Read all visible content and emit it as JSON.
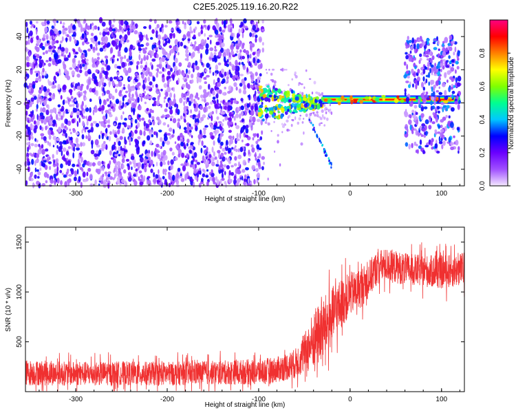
{
  "title": "C2E5.2025.119.16.20.R22",
  "chart_data": [
    {
      "type": "heatmap",
      "xlabel": "Height of straight line (km)",
      "ylabel": "Frequency (Hz)",
      "xlim": [
        -355,
        125
      ],
      "ylim": [
        -50,
        50
      ],
      "x_ticks": [
        -300,
        -200,
        -100,
        0,
        100
      ],
      "y_ticks": [
        -40,
        -20,
        0,
        20,
        40
      ],
      "colorbar": {
        "label": "Normalized spectral amplitude",
        "range": [
          0,
          1
        ],
        "ticks": [
          "0.0",
          "0.2",
          "0.4",
          "0.6",
          "0.8"
        ],
        "ticks_values": [
          0.0,
          0.2,
          0.4,
          0.6,
          0.8
        ],
        "colors": [
          "#f4e8ff",
          "#a050ff",
          "#6a00ff",
          "#0000ff",
          "#00c8ff",
          "#00ff90",
          "#80ff00",
          "#ffff00",
          "#ff8000",
          "#ff0000",
          "#ff0080"
        ]
      },
      "regions": [
        {
          "x": [
            -355,
            -95
          ],
          "y": [
            -50,
            50
          ],
          "amplitude": 0.12,
          "pattern": "noise"
        },
        {
          "x": [
            -95,
            -20
          ],
          "y": [
            -50,
            20
          ],
          "amplitude": 0.08,
          "pattern": "sparse"
        },
        {
          "x": [
            -100,
            -30
          ],
          "y": [
            -12,
            12
          ],
          "amplitude": 0.45,
          "pattern": "converging"
        },
        {
          "x": [
            -30,
            120
          ],
          "y": [
            0,
            4
          ],
          "amplitude": 0.95,
          "pattern": "band"
        },
        {
          "x": [
            60,
            120
          ],
          "y": [
            -30,
            40
          ],
          "amplitude": 0.15,
          "pattern": "noise"
        }
      ],
      "grid": false
    },
    {
      "type": "line",
      "xlabel": "Height of straight line (km)",
      "ylabel": "SNR (10 * v/v)",
      "xlim": [
        -355,
        125
      ],
      "ylim": [
        0,
        1650
      ],
      "x_ticks": [
        -300,
        -200,
        -100,
        0,
        100
      ],
      "y_ticks": [
        500,
        1000,
        1500
      ],
      "color": "#f03030",
      "x": [
        -355,
        -300,
        -250,
        -200,
        -150,
        -100,
        -80,
        -60,
        -50,
        -40,
        -30,
        -20,
        -10,
        0,
        10,
        20,
        30,
        40,
        60,
        80,
        100,
        125
      ],
      "y": [
        190,
        180,
        185,
        180,
        190,
        200,
        220,
        280,
        380,
        520,
        620,
        750,
        880,
        980,
        1030,
        1120,
        1250,
        1270,
        1230,
        1210,
        1200,
        1230
      ],
      "noise": [
        130,
        120,
        120,
        120,
        120,
        130,
        130,
        150,
        200,
        300,
        320,
        300,
        250,
        220,
        200,
        190,
        170,
        170,
        160,
        160,
        170,
        170
      ],
      "grid": false
    }
  ]
}
